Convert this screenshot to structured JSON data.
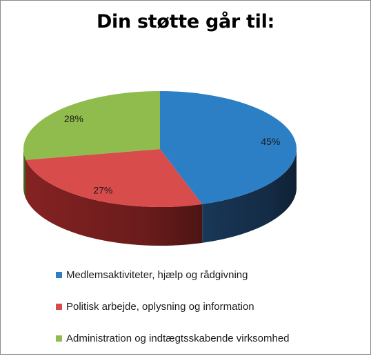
{
  "chart_data": {
    "type": "pie",
    "title": "Din støtte går til:",
    "series": [
      {
        "name": "Medlemsaktiviteter, hjælp og rådgivning",
        "value": 45,
        "label": "45%",
        "color": "#2c7fc4",
        "side_color": "#1a3a5c"
      },
      {
        "name": "Politisk arbejde, oplysning og information",
        "value": 27,
        "label": "27%",
        "color": "#d94c4c",
        "side_color": "#8c2424"
      },
      {
        "name": "Administration og indtægtsskabende virksomhed",
        "value": 28,
        "label": "28%",
        "color": "#8fbc4d",
        "side_color": "#5a7a2c"
      }
    ],
    "legend_position": "bottom"
  }
}
